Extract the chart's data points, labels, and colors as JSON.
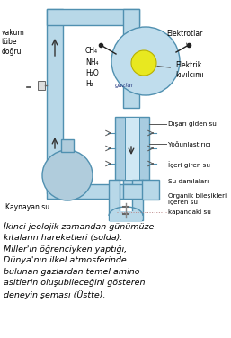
{
  "bg_color": "#ffffff",
  "fig_width": 2.57,
  "fig_height": 3.76,
  "dpi": 100,
  "caption": "İkinci jeolojik zamandan günümüze\nkıtaların hareketleri (solda).\nMiller'in öğrenciyken yaptığı,\nDünya'nın ilkel atmosferinde\nbulunan gazlardan temel amino\nasitlerin oluşubileceğini gösteren\ndeneyin şeması (Üstte).",
  "caption_fontsize": 6.8,
  "caption_style": "italic",
  "tube_face": "#b8d8e8",
  "tube_edge": "#5090b0",
  "sphere_face": "#c0dded",
  "flask_face": "#b0ccdc",
  "spark_face": "#e8e820",
  "text_color": "#000000",
  "labels": {
    "elektrotlar": "Elektrotlar",
    "elektrik_kivil": "Elektrik\nkıvılcımı",
    "gazlar": "gazlar",
    "ch4": "CH₄\nNH₄\nH₂O\nH₂",
    "vakum": "vakum\ntübe\ndoğru",
    "kaynayan": "Kaynayan su",
    "disari": "Dışarı giden su",
    "yogunlastirici": "Yoğunlaştırıcı",
    "iceri": "İçeri giren su",
    "su_daml": "Su damlaları",
    "organik": "Organik bileşikleri\niçeren su",
    "kapandaki": "kapandaki su"
  }
}
